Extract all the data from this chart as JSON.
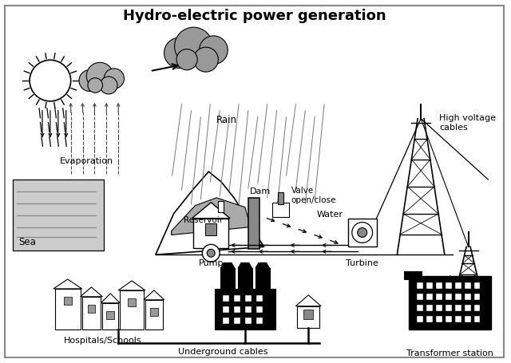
{
  "title": "Hydro-electric power generation",
  "title_fontsize": 13,
  "title_fontweight": "bold",
  "bg_color": "#ffffff",
  "border_color": "#888888",
  "labels": {
    "sea": "Sea",
    "evaporation": "Evaporation",
    "rain": "Rain",
    "dam": "Dam",
    "reservoir": "Reservoir",
    "valve": "Valve\nopen/close",
    "water": "Water",
    "pump": "Pump",
    "turbine": "Turbine",
    "high_voltage": "High voltage\ncables",
    "hospitals": "Hospitals/Schools",
    "underground": "Underground cables",
    "transformer": "Transformer station"
  },
  "colors": {
    "main_gray": "#aaaaaa",
    "dark": "#222222",
    "medium": "#555555",
    "light_gray": "#cccccc",
    "water_color": "#bbbbbb",
    "cloud_color": "#999999",
    "sea_color": "#bbbbbb",
    "border_color": "#888888"
  }
}
